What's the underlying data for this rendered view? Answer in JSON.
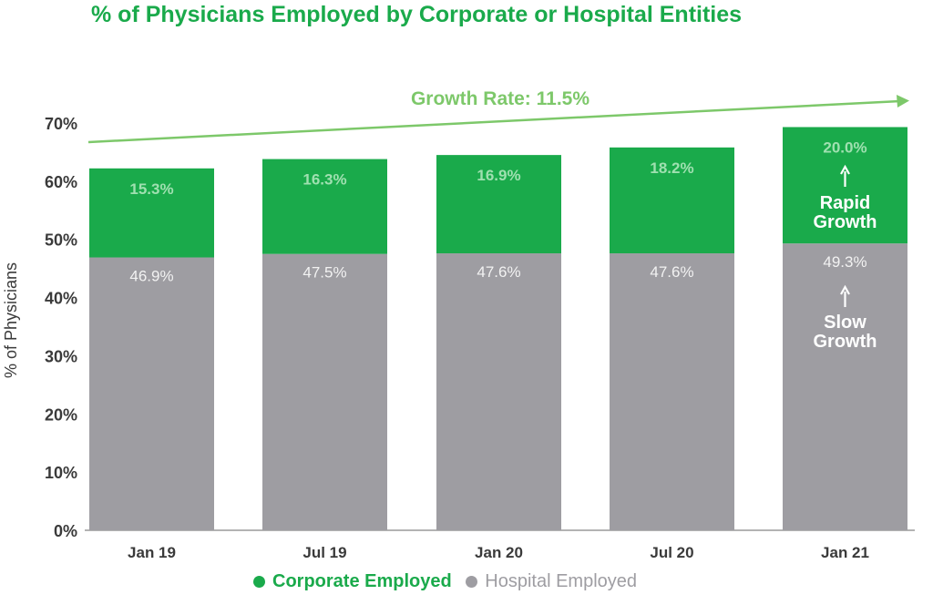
{
  "chart_data": {
    "type": "bar",
    "stacked": true,
    "title": "% of Physicians Employed by Corporate or Hospital Entities",
    "ylabel": "% of Physicians",
    "xlabel": "",
    "ylim": [
      0,
      70
    ],
    "yticks": [
      "0%",
      "10%",
      "20%",
      "30%",
      "40%",
      "50%",
      "60%",
      "70%"
    ],
    "categories": [
      "Jan 19",
      "Jul 19",
      "Jan 20",
      "Jul 20",
      "Jan 21"
    ],
    "series": [
      {
        "name": "Hospital Employed",
        "color": "#9e9da2",
        "values": [
          46.9,
          47.5,
          47.6,
          47.6,
          49.3
        ],
        "labels": [
          "46.9%",
          "47.5%",
          "47.6%",
          "47.6%",
          "49.3%"
        ]
      },
      {
        "name": "Corporate Employed",
        "color": "#1aaa4b",
        "values": [
          15.3,
          16.3,
          16.9,
          18.2,
          20.0
        ],
        "labels": [
          "15.3%",
          "16.3%",
          "16.9%",
          "18.2%",
          "20.0%"
        ]
      }
    ],
    "annotations": {
      "growth_rate": "Growth Rate: 11.5%",
      "rapid_growth": [
        "Rapid",
        "Growth"
      ],
      "slow_growth": [
        "Slow",
        "Growth"
      ]
    },
    "grid": false,
    "legend_position": "bottom"
  },
  "colors": {
    "title": "#1aaa4b",
    "corporate": "#1aaa4b",
    "hospital": "#9e9da2",
    "growth_arrow": "#7dc86a",
    "corporate_label": "#9fe0b0"
  }
}
